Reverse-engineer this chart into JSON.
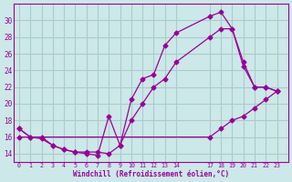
{
  "xlabel": "Windchill (Refroidissement éolien,°C)",
  "bg_color": "#cce8e8",
  "grid_color": "#aacccc",
  "line_color": "#990099",
  "xticks": [
    0,
    1,
    2,
    3,
    4,
    5,
    6,
    7,
    8,
    9,
    10,
    11,
    12,
    13,
    14,
    17,
    18,
    19,
    20,
    21,
    22,
    23
  ],
  "yticks": [
    14,
    16,
    18,
    20,
    22,
    24,
    26,
    28,
    30
  ],
  "ylim": [
    13.0,
    32.0
  ],
  "xlim": [
    -0.5,
    24.0
  ],
  "line1_x": [
    0,
    1,
    2,
    3,
    4,
    5,
    6,
    7,
    8,
    9,
    10,
    11,
    12,
    13,
    14,
    17,
    18,
    19,
    20,
    21,
    22,
    23
  ],
  "line1_y": [
    17,
    16,
    15.8,
    15,
    14.5,
    14.2,
    14,
    13.8,
    18.5,
    15,
    20.5,
    23,
    23.5,
    27,
    28.5,
    30.5,
    31,
    29,
    24.5,
    22,
    22,
    21.5
  ],
  "line2_x": [
    0,
    1,
    2,
    3,
    4,
    5,
    6,
    7,
    8,
    9,
    10,
    11,
    12,
    13,
    14,
    17,
    18,
    19,
    20,
    21,
    22,
    23
  ],
  "line2_y": [
    17,
    16,
    16,
    15,
    14.5,
    14.2,
    14.2,
    14.2,
    14,
    15,
    18,
    20,
    22,
    23,
    25,
    28,
    29,
    29,
    25,
    22,
    22,
    21.5
  ],
  "line3_x": [
    0,
    17,
    18,
    19,
    20,
    21,
    22,
    23
  ],
  "line3_y": [
    16,
    16,
    17,
    18,
    18.5,
    19.5,
    20.5,
    21.5
  ]
}
